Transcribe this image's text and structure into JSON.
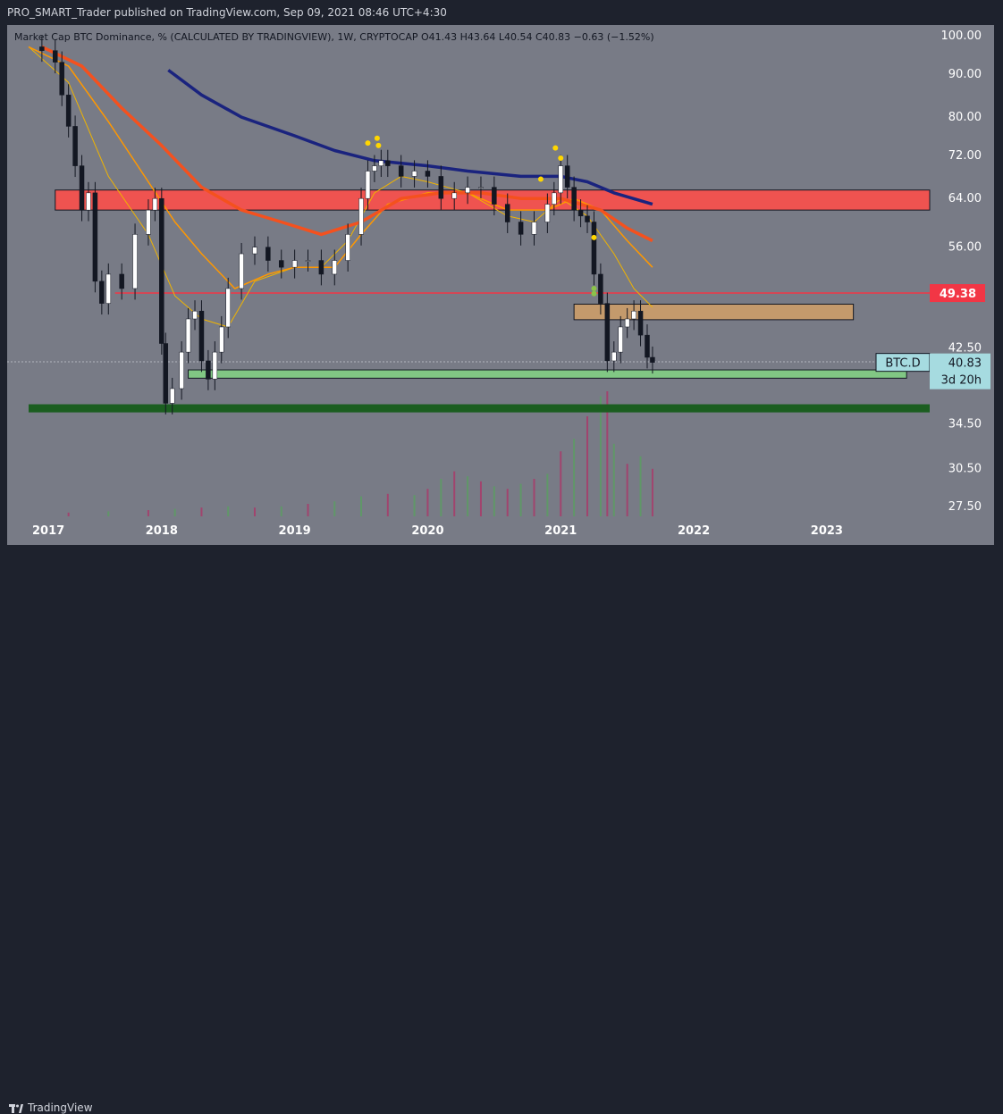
{
  "header": {
    "published_by": "PRO_SMART_Trader published on TradingView.com, Sep 09, 2021 08:46 UTC+4:30"
  },
  "legend": {
    "text": "Market Cap BTC Dominance, % (CALCULATED BY TRADINGVIEW), 1W, CRYPTOCAP  O41.43  H43.64  L40.54  C40.83  −0.63 (−1.52%)"
  },
  "footer": {
    "brand": "TradingView"
  },
  "colors": {
    "background": "#787b86",
    "up": "#ffffff",
    "down": "#131722",
    "ema_fast": "#f0b400",
    "ema_mid": "#ff9800",
    "ema_slow": "#f4511e",
    "ema_long": "#1a237e",
    "resistance_zone": "#ef5350",
    "support_zone": "#81c784",
    "demand_zone": "#c49a6c",
    "bottom_band": "#1b5e20",
    "level_line": "#f23645",
    "price_tag": "#a6dbe0"
  },
  "chart_data": {
    "type": "candlestick",
    "symbol": "BTC.D",
    "timeframe": "1W",
    "y_axis": {
      "ticks": [
        "100.00",
        "90.00",
        "80.00",
        "72.00",
        "64.00",
        "56.00",
        "49.38",
        "42.50",
        "40.83",
        "34.50",
        "30.50",
        "27.50"
      ],
      "scale": "log",
      "ylim": [
        26,
        104
      ]
    },
    "x_axis": {
      "ticks": [
        "2017",
        "2018",
        "2019",
        "2020",
        "2021",
        "2022",
        "2023"
      ],
      "xlim": [
        2017.0,
        2023.8
      ]
    },
    "last_price": {
      "symbol": "BTC.D",
      "value": "40.83",
      "countdown": "3d 20h"
    },
    "horizontal_level": {
      "value": 49.38,
      "label": "49.38"
    },
    "zones": [
      {
        "name": "resistance",
        "from": 62.0,
        "to": 65.5,
        "x_start": 2017.2,
        "x_end": 2023.8
      },
      {
        "name": "demand",
        "from": 45.9,
        "to": 47.9,
        "x_start": 2021.1,
        "x_end": 2023.2
      },
      {
        "name": "support",
        "from": 39.1,
        "to": 40.0,
        "x_start": 2018.2,
        "x_end": 2023.6
      },
      {
        "name": "bottom",
        "from": 35.6,
        "to": 36.4,
        "x_start": 2017.0,
        "x_end": 2023.8
      }
    ],
    "series": [
      {
        "x": 2017.0,
        "v": 97
      },
      {
        "x": 2017.1,
        "v": 96
      },
      {
        "x": 2017.2,
        "v": 93
      },
      {
        "x": 2017.25,
        "v": 85
      },
      {
        "x": 2017.3,
        "v": 78
      },
      {
        "x": 2017.35,
        "v": 70
      },
      {
        "x": 2017.4,
        "v": 62
      },
      {
        "x": 2017.45,
        "v": 65
      },
      {
        "x": 2017.5,
        "v": 51
      },
      {
        "x": 2017.55,
        "v": 48
      },
      {
        "x": 2017.6,
        "v": 52
      },
      {
        "x": 2017.7,
        "v": 50
      },
      {
        "x": 2017.8,
        "v": 58
      },
      {
        "x": 2017.9,
        "v": 62
      },
      {
        "x": 2017.95,
        "v": 64
      },
      {
        "x": 2018.0,
        "v": 43
      },
      {
        "x": 2018.03,
        "v": 36.5
      },
      {
        "x": 2018.08,
        "v": 38
      },
      {
        "x": 2018.15,
        "v": 42
      },
      {
        "x": 2018.2,
        "v": 46
      },
      {
        "x": 2018.25,
        "v": 47
      },
      {
        "x": 2018.3,
        "v": 41
      },
      {
        "x": 2018.35,
        "v": 39
      },
      {
        "x": 2018.4,
        "v": 42
      },
      {
        "x": 2018.45,
        "v": 45
      },
      {
        "x": 2018.5,
        "v": 50
      },
      {
        "x": 2018.6,
        "v": 55
      },
      {
        "x": 2018.7,
        "v": 56
      },
      {
        "x": 2018.8,
        "v": 54
      },
      {
        "x": 2018.9,
        "v": 53
      },
      {
        "x": 2019.0,
        "v": 54
      },
      {
        "x": 2019.1,
        "v": 54
      },
      {
        "x": 2019.2,
        "v": 52
      },
      {
        "x": 2019.3,
        "v": 54
      },
      {
        "x": 2019.4,
        "v": 58
      },
      {
        "x": 2019.5,
        "v": 64
      },
      {
        "x": 2019.55,
        "v": 69
      },
      {
        "x": 2019.6,
        "v": 70
      },
      {
        "x": 2019.65,
        "v": 71
      },
      {
        "x": 2019.7,
        "v": 70
      },
      {
        "x": 2019.8,
        "v": 68
      },
      {
        "x": 2019.9,
        "v": 69
      },
      {
        "x": 2020.0,
        "v": 68
      },
      {
        "x": 2020.1,
        "v": 64
      },
      {
        "x": 2020.2,
        "v": 65
      },
      {
        "x": 2020.3,
        "v": 66
      },
      {
        "x": 2020.4,
        "v": 66
      },
      {
        "x": 2020.5,
        "v": 63
      },
      {
        "x": 2020.6,
        "v": 60
      },
      {
        "x": 2020.7,
        "v": 58
      },
      {
        "x": 2020.8,
        "v": 60
      },
      {
        "x": 2020.9,
        "v": 63
      },
      {
        "x": 2020.95,
        "v": 65
      },
      {
        "x": 2021.0,
        "v": 70
      },
      {
        "x": 2021.05,
        "v": 66
      },
      {
        "x": 2021.1,
        "v": 62
      },
      {
        "x": 2021.15,
        "v": 61
      },
      {
        "x": 2021.2,
        "v": 60
      },
      {
        "x": 2021.25,
        "v": 52
      },
      {
        "x": 2021.3,
        "v": 48
      },
      {
        "x": 2021.35,
        "v": 41
      },
      {
        "x": 2021.4,
        "v": 42
      },
      {
        "x": 2021.45,
        "v": 45
      },
      {
        "x": 2021.5,
        "v": 46
      },
      {
        "x": 2021.55,
        "v": 47
      },
      {
        "x": 2021.6,
        "v": 44
      },
      {
        "x": 2021.65,
        "v": 41.4
      },
      {
        "x": 2021.69,
        "v": 40.83
      }
    ],
    "moving_averages": [
      {
        "color": "#f0b400",
        "points": [
          [
            2017.0,
            97
          ],
          [
            2017.3,
            88
          ],
          [
            2017.6,
            68
          ],
          [
            2017.9,
            58
          ],
          [
            2018.1,
            49
          ],
          [
            2018.3,
            46
          ],
          [
            2018.5,
            45
          ],
          [
            2018.7,
            51
          ],
          [
            2019.0,
            53
          ],
          [
            2019.2,
            53
          ],
          [
            2019.4,
            57
          ],
          [
            2019.6,
            65
          ],
          [
            2019.8,
            68
          ],
          [
            2020.0,
            67
          ],
          [
            2020.3,
            65
          ],
          [
            2020.6,
            61
          ],
          [
            2020.8,
            60
          ],
          [
            2021.0,
            64
          ],
          [
            2021.2,
            61
          ],
          [
            2021.4,
            55
          ],
          [
            2021.55,
            50
          ],
          [
            2021.69,
            47.5
          ]
        ]
      },
      {
        "color": "#ff9800",
        "points": [
          [
            2017.0,
            97
          ],
          [
            2017.3,
            92
          ],
          [
            2017.6,
            79
          ],
          [
            2017.9,
            67
          ],
          [
            2018.1,
            60
          ],
          [
            2018.3,
            55
          ],
          [
            2018.55,
            50
          ],
          [
            2018.8,
            52
          ],
          [
            2019.0,
            53
          ],
          [
            2019.3,
            53
          ],
          [
            2019.5,
            58
          ],
          [
            2019.7,
            63
          ],
          [
            2020.0,
            65
          ],
          [
            2020.3,
            65
          ],
          [
            2020.6,
            62
          ],
          [
            2020.9,
            62
          ],
          [
            2021.1,
            64
          ],
          [
            2021.3,
            62
          ],
          [
            2021.5,
            57
          ],
          [
            2021.69,
            53
          ]
        ]
      },
      {
        "color": "#f4511e",
        "points": [
          [
            2017.1,
            97
          ],
          [
            2017.4,
            92
          ],
          [
            2017.7,
            82
          ],
          [
            2018.0,
            74
          ],
          [
            2018.3,
            66
          ],
          [
            2018.6,
            62
          ],
          [
            2018.9,
            60
          ],
          [
            2019.2,
            58
          ],
          [
            2019.5,
            60
          ],
          [
            2019.8,
            64
          ],
          [
            2020.1,
            65
          ],
          [
            2020.4,
            65
          ],
          [
            2020.7,
            64
          ],
          [
            2021.0,
            64
          ],
          [
            2021.3,
            62
          ],
          [
            2021.5,
            59
          ],
          [
            2021.69,
            57
          ]
        ]
      },
      {
        "color": "#1a237e",
        "points": [
          [
            2018.05,
            91
          ],
          [
            2018.3,
            85
          ],
          [
            2018.6,
            80
          ],
          [
            2019.0,
            76
          ],
          [
            2019.3,
            73
          ],
          [
            2019.6,
            71
          ],
          [
            2020.0,
            70
          ],
          [
            2020.3,
            69
          ],
          [
            2020.7,
            68
          ],
          [
            2021.0,
            68
          ],
          [
            2021.2,
            67
          ],
          [
            2021.4,
            65
          ],
          [
            2021.69,
            63
          ]
        ]
      }
    ],
    "markers": [
      {
        "x": 2019.55,
        "v": 74.5,
        "color": "#ffd600"
      },
      {
        "x": 2019.62,
        "v": 75.5,
        "color": "#ffd600"
      },
      {
        "x": 2019.63,
        "v": 74.0,
        "color": "#ffd600"
      },
      {
        "x": 2020.85,
        "v": 67.5,
        "color": "#ffd600"
      },
      {
        "x": 2020.96,
        "v": 73.5,
        "color": "#ffd600"
      },
      {
        "x": 2021.0,
        "v": 71.5,
        "color": "#ffd600"
      },
      {
        "x": 2021.25,
        "v": 57.5,
        "color": "#ffd600"
      },
      {
        "x": 2021.25,
        "v": 50.0,
        "color": "#8bc34a"
      },
      {
        "x": 2021.25,
        "v": 49.3,
        "color": "#8bc34a"
      }
    ],
    "volume": [
      {
        "x": 2017.3,
        "v": 3,
        "up": false
      },
      {
        "x": 2017.6,
        "v": 4,
        "up": true
      },
      {
        "x": 2017.9,
        "v": 5,
        "up": false
      },
      {
        "x": 2018.1,
        "v": 6,
        "up": true
      },
      {
        "x": 2018.3,
        "v": 7,
        "up": false
      },
      {
        "x": 2018.5,
        "v": 8,
        "up": true
      },
      {
        "x": 2018.7,
        "v": 7,
        "up": false
      },
      {
        "x": 2018.9,
        "v": 8,
        "up": true
      },
      {
        "x": 2019.1,
        "v": 10,
        "up": false
      },
      {
        "x": 2019.3,
        "v": 12,
        "up": true
      },
      {
        "x": 2019.5,
        "v": 16,
        "up": true
      },
      {
        "x": 2019.7,
        "v": 18,
        "up": false
      },
      {
        "x": 2019.9,
        "v": 17,
        "up": true
      },
      {
        "x": 2020.0,
        "v": 22,
        "up": false
      },
      {
        "x": 2020.1,
        "v": 30,
        "up": true
      },
      {
        "x": 2020.2,
        "v": 36,
        "up": false
      },
      {
        "x": 2020.3,
        "v": 32,
        "up": true
      },
      {
        "x": 2020.4,
        "v": 28,
        "up": false
      },
      {
        "x": 2020.5,
        "v": 24,
        "up": true
      },
      {
        "x": 2020.6,
        "v": 22,
        "up": false
      },
      {
        "x": 2020.7,
        "v": 26,
        "up": true
      },
      {
        "x": 2020.8,
        "v": 30,
        "up": false
      },
      {
        "x": 2020.9,
        "v": 34,
        "up": true
      },
      {
        "x": 2021.0,
        "v": 52,
        "up": false
      },
      {
        "x": 2021.1,
        "v": 62,
        "up": true
      },
      {
        "x": 2021.2,
        "v": 80,
        "up": false
      },
      {
        "x": 2021.3,
        "v": 96,
        "up": true
      },
      {
        "x": 2021.35,
        "v": 100,
        "up": false
      },
      {
        "x": 2021.4,
        "v": 58,
        "up": true
      },
      {
        "x": 2021.5,
        "v": 42,
        "up": false
      },
      {
        "x": 2021.6,
        "v": 48,
        "up": true
      },
      {
        "x": 2021.69,
        "v": 38,
        "up": false
      }
    ]
  }
}
